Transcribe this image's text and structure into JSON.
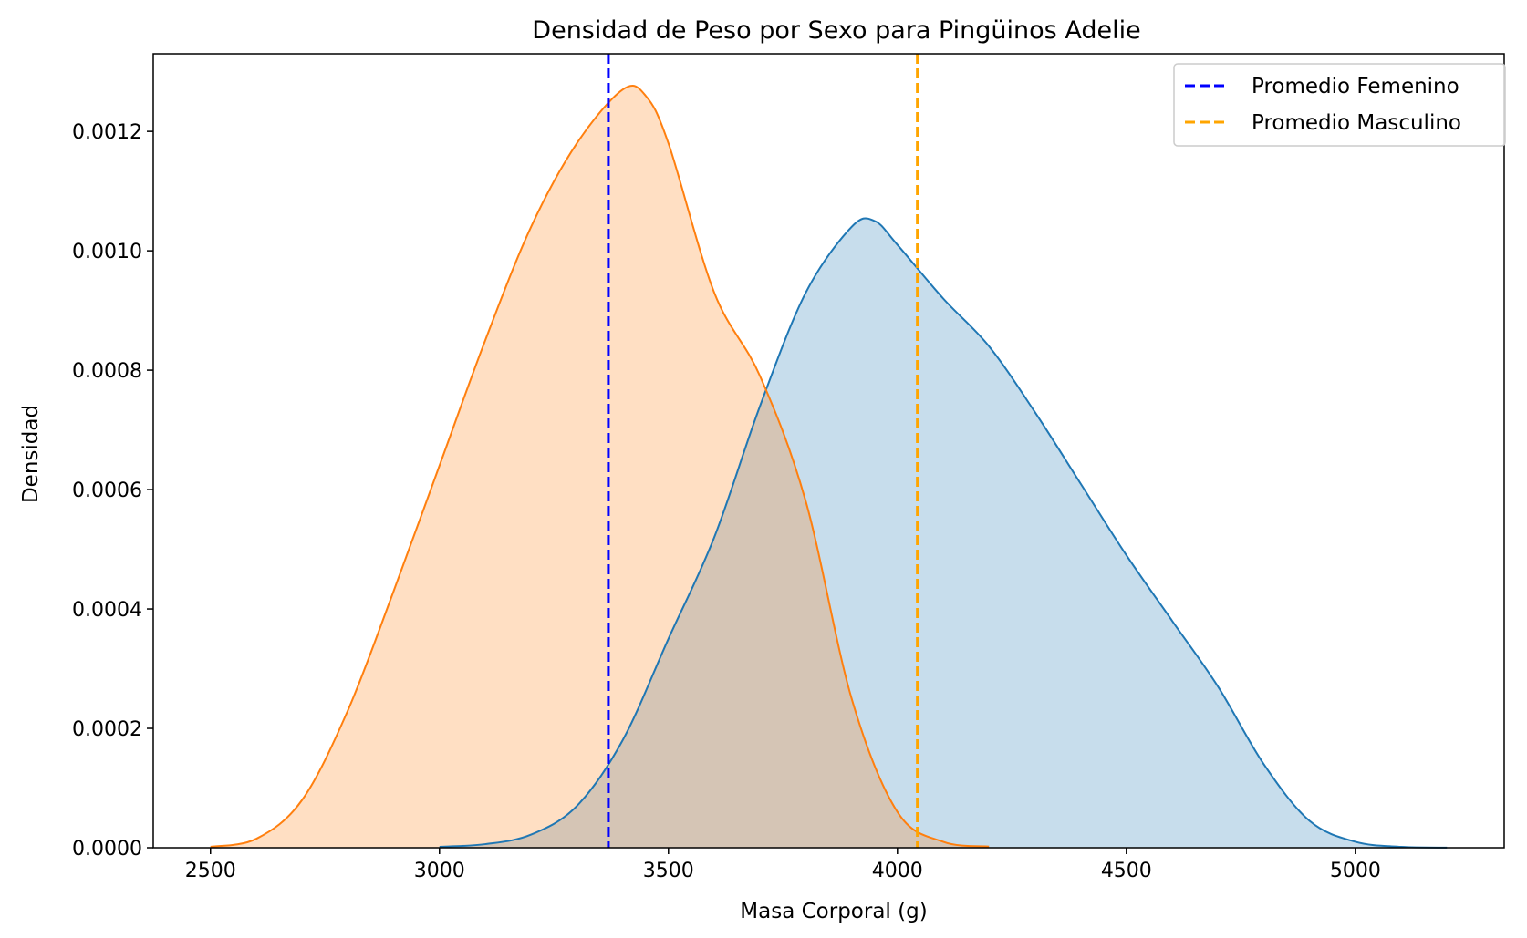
{
  "chart_data": {
    "type": "area",
    "title": "Densidad de Peso por Sexo para Pingüinos Adelie",
    "xlabel": "Masa Corporal (g)",
    "ylabel": "Densidad",
    "xlim": [
      2375,
      5325
    ],
    "ylim": [
      0,
      0.00133
    ],
    "xticks": [
      2500,
      3000,
      3500,
      4000,
      4500,
      5000
    ],
    "xtick_labels": [
      "2500",
      "3000",
      "3500",
      "4000",
      "4500",
      "5000"
    ],
    "yticks": [
      0,
      0.0002,
      0.0004,
      0.0006,
      0.0008,
      0.001,
      0.0012
    ],
    "ytick_labels": [
      "0.0000",
      "0.0002",
      "0.0004",
      "0.0006",
      "0.0008",
      "0.0010",
      "0.0012"
    ],
    "grid": false,
    "legend_position": "top-right",
    "series": [
      {
        "color": "#1f77b4",
        "fill": "#1f77b4",
        "fill_opacity": 0.25,
        "x": [
          3000,
          3100,
          3200,
          3300,
          3400,
          3500,
          3600,
          3700,
          3800,
          3900,
          3950,
          4000,
          4100,
          4200,
          4300,
          4400,
          4500,
          4600,
          4700,
          4800,
          4900,
          5000,
          5100,
          5200
        ],
        "y": [
          1.5e-06,
          6e-06,
          2.2e-05,
          7e-05,
          0.00018,
          0.00035,
          0.00052,
          0.00074,
          0.00093,
          0.00104,
          0.00105,
          0.00101,
          0.00092,
          0.00084,
          0.00073,
          0.00061,
          0.00049,
          0.00038,
          0.00027,
          0.00014,
          4.5e-05,
          1e-05,
          1.5e-06,
          2e-07
        ]
      },
      {
        "color": "#ff7f0e",
        "fill": "#ff7f0e",
        "fill_opacity": 0.25,
        "x": [
          2500,
          2600,
          2700,
          2800,
          2900,
          3000,
          3100,
          3200,
          3300,
          3400,
          3450,
          3500,
          3600,
          3700,
          3800,
          3900,
          4000,
          4100,
          4200
        ],
        "y": [
          1.5e-06,
          1.5e-05,
          8e-05,
          0.00023,
          0.00043,
          0.00064,
          0.00085,
          0.00104,
          0.00118,
          0.00127,
          0.00126,
          0.00118,
          0.00093,
          0.00079,
          0.00058,
          0.00025,
          6e-05,
          1e-05,
          2e-06
        ]
      }
    ],
    "reference_lines": [
      {
        "label": "Promedio Femenino",
        "x": 3368.8,
        "color": "#0000ff",
        "style": "dashed"
      },
      {
        "label": "Promedio Masculino",
        "x": 4043.5,
        "color": "#ffa500",
        "style": "dashed"
      }
    ]
  }
}
